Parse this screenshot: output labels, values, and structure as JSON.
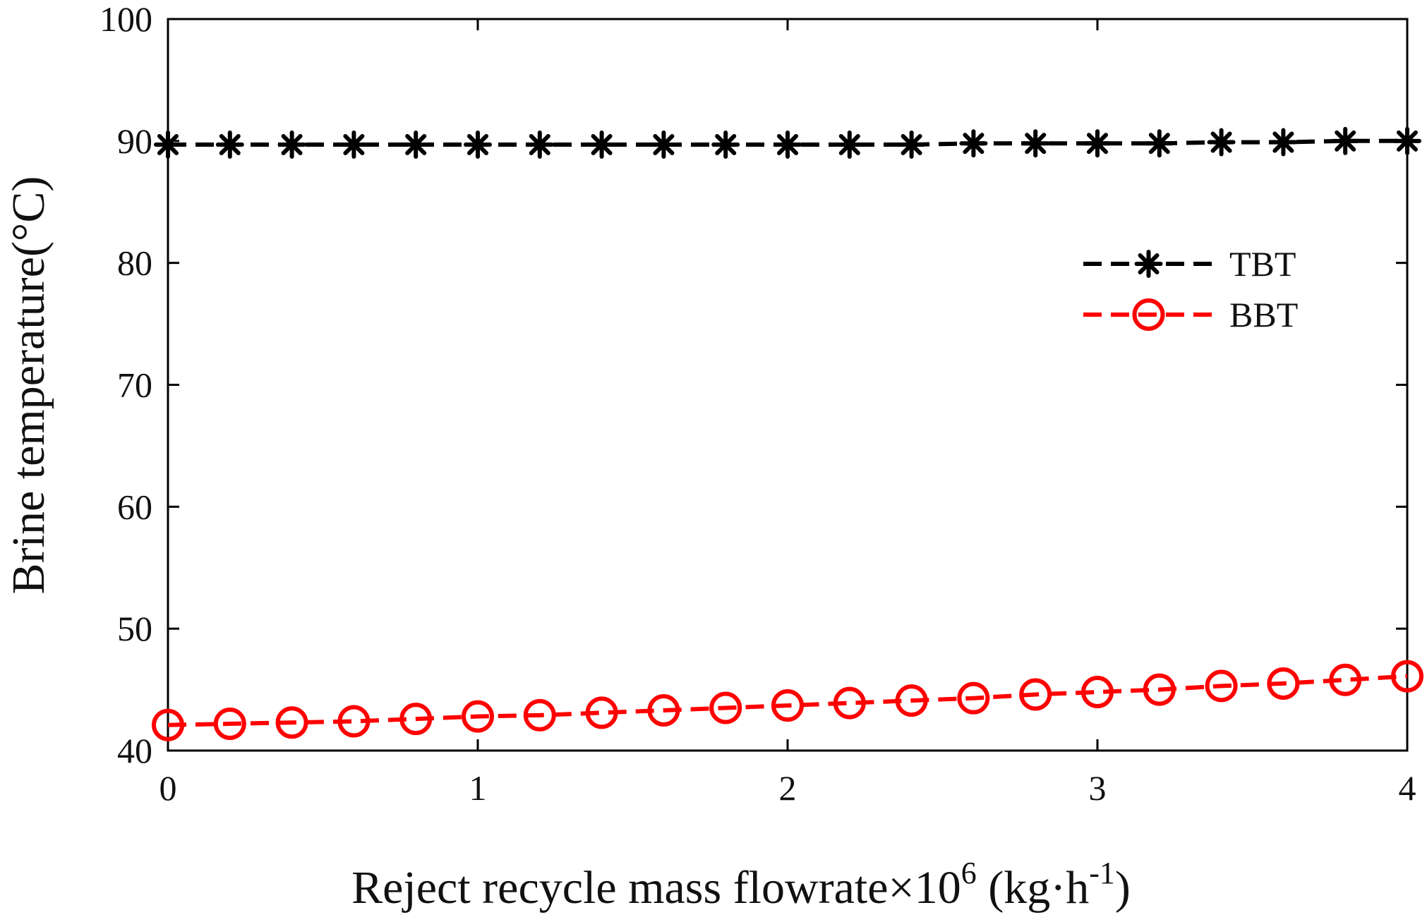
{
  "chart_data": {
    "type": "line",
    "title": "",
    "xlabel": {
      "main": "Reject recycle mass flowrate×10",
      "exponent": "6",
      "unit_prefix": " (kg·h",
      "unit_exponent": "-1",
      "unit_suffix": ")"
    },
    "ylabel": "Brine temperature(°C)",
    "xlim": [
      0,
      4
    ],
    "ylim": [
      40,
      100
    ],
    "xticks": [
      0,
      1,
      2,
      3,
      4
    ],
    "xtick_labels": [
      "0",
      "1",
      "2",
      "3",
      "4"
    ],
    "yticks": [
      40,
      50,
      60,
      70,
      80,
      90,
      100
    ],
    "ytick_labels": [
      "40",
      "50",
      "60",
      "70",
      "80",
      "90",
      "100"
    ],
    "grid": false,
    "legend_position": "upper-right",
    "x": [
      0,
      0.2,
      0.4,
      0.6,
      0.8,
      1.0,
      1.2,
      1.4,
      1.6,
      1.8,
      2.0,
      2.2,
      2.4,
      2.6,
      2.8,
      3.0,
      3.2,
      3.4,
      3.6,
      3.8,
      4.0
    ],
    "series": [
      {
        "name": "TBT",
        "color": "#000000",
        "marker": "asterisk",
        "line_style": "dashed",
        "values": [
          89.7,
          89.7,
          89.7,
          89.7,
          89.7,
          89.7,
          89.7,
          89.7,
          89.7,
          89.7,
          89.7,
          89.7,
          89.7,
          89.8,
          89.8,
          89.8,
          89.8,
          89.9,
          89.9,
          90.0,
          90.0
        ]
      },
      {
        "name": "BBT",
        "color": "#ff0000",
        "marker": "circle",
        "line_style": "dashed",
        "values": [
          42.1,
          42.2,
          42.3,
          42.4,
          42.6,
          42.8,
          42.9,
          43.1,
          43.3,
          43.5,
          43.7,
          43.9,
          44.1,
          44.3,
          44.6,
          44.8,
          45.0,
          45.3,
          45.5,
          45.8,
          46.1
        ]
      }
    ]
  }
}
